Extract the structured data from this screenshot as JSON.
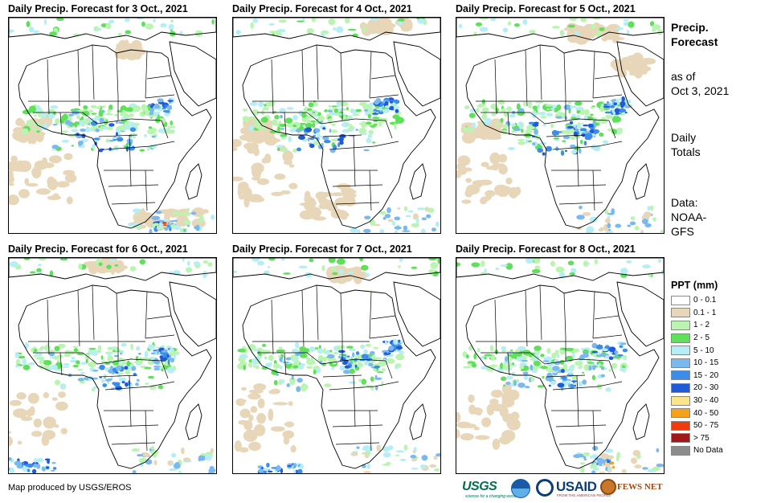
{
  "panels": [
    {
      "title": "Daily Precip. Forecast for 3 Oct., 2021",
      "variant": 0
    },
    {
      "title": "Daily Precip. Forecast for 4 Oct., 2021",
      "variant": 1
    },
    {
      "title": "Daily Precip. Forecast for 5 Oct., 2021",
      "variant": 2
    },
    {
      "title": "Daily Precip. Forecast for 6 Oct., 2021",
      "variant": 3
    },
    {
      "title": "Daily Precip. Forecast for 7 Oct., 2021",
      "variant": 4
    },
    {
      "title": "Daily Precip. Forecast for 8 Oct., 2021",
      "variant": 5
    }
  ],
  "side_panel": {
    "title_line1": "Precip.",
    "title_line2": "Forecast",
    "asof_line1": "as of",
    "asof_line2": "Oct 3, 2021",
    "daily_line1": "Daily",
    "daily_line2": "Totals",
    "data_line1": "Data:",
    "data_line2": "NOAA-",
    "data_line3": "GFS"
  },
  "legend": {
    "title": "PPT (mm)",
    "items": [
      {
        "label": "0 - 0.1",
        "color": "#ffffff"
      },
      {
        "label": "0.1 - 1",
        "color": "#e8d6b8"
      },
      {
        "label": "1 - 2",
        "color": "#b9f5b0"
      },
      {
        "label": "2 - 5",
        "color": "#5fe05a"
      },
      {
        "label": "5 - 10",
        "color": "#b5eef5"
      },
      {
        "label": "10 - 15",
        "color": "#7ab8f0"
      },
      {
        "label": "15 - 20",
        "color": "#3c8de8"
      },
      {
        "label": "20 - 30",
        "color": "#1f5ad8"
      },
      {
        "label": "30 - 40",
        "color": "#fce48a"
      },
      {
        "label": "40 - 50",
        "color": "#f5a21a"
      },
      {
        "label": "50 - 75",
        "color": "#ee3c10"
      },
      {
        "label": "> 75",
        "color": "#a01818"
      },
      {
        "label": "No Data",
        "color": "#8c8c8c"
      }
    ]
  },
  "footer": {
    "credit": "Map produced by USGS/EROS"
  },
  "logos": {
    "usgs": "USGS",
    "usgs_tag": "science for a changing world",
    "usaid": "USAID",
    "usaid_tag": "FROM THE AMERICAN PEOPLE",
    "fews": "FEWS NET"
  }
}
